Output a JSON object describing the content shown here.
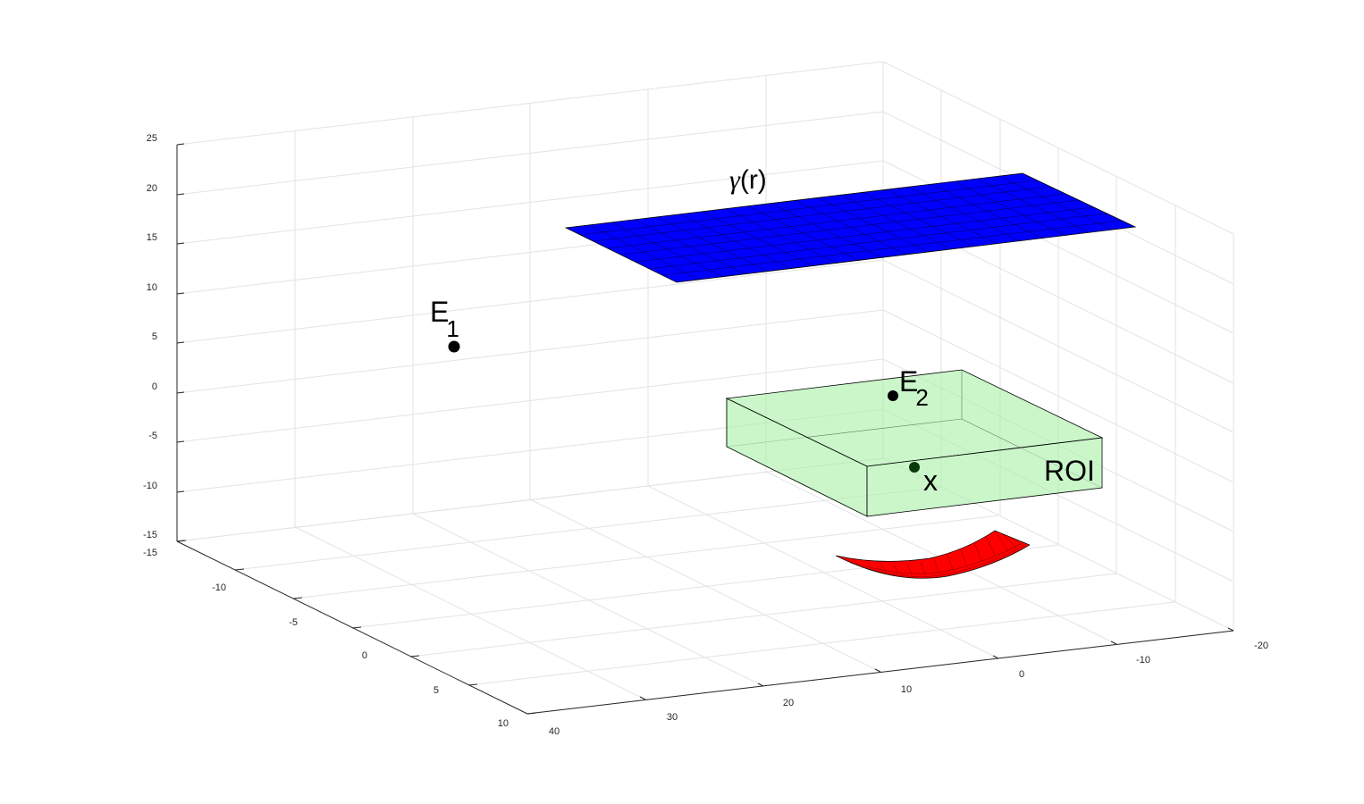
{
  "axes": {
    "z_ticks": [
      "25",
      "20",
      "15",
      "10",
      "5",
      "0",
      "-5",
      "-10",
      "-15"
    ],
    "y_ticks": [
      "-15",
      "-10",
      "-5",
      "0",
      "5",
      "10"
    ],
    "x_ticks": [
      "40",
      "30",
      "20",
      "10",
      "0",
      "-10",
      "-20"
    ],
    "grid": true
  },
  "labels": {
    "gamma_prefix": "γ",
    "gamma_suffix": "(r)",
    "e1_main": "E",
    "e1_sub": "1",
    "e2_main": "E",
    "e2_sub": "2",
    "x_point": "x",
    "roi": "ROI"
  },
  "colors": {
    "plane": "#0000ff",
    "roi_fill": "#a6f0a6",
    "bowl": "#ff0000",
    "points": "#000000"
  }
}
